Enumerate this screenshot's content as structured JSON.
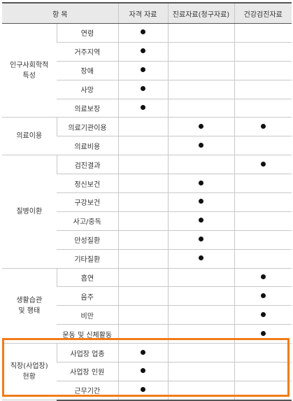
{
  "header": {
    "item": "항 목",
    "col1": "자격 자료",
    "col2": "진료자료(청구자료)",
    "col3": "건강검진자료"
  },
  "groups": [
    {
      "label": "인구사회학적\n특성",
      "rows": [
        {
          "name": "연령",
          "marks": [
            true,
            false,
            false
          ]
        },
        {
          "name": "거주지역",
          "marks": [
            true,
            false,
            false
          ]
        },
        {
          "name": "장애",
          "marks": [
            true,
            false,
            false
          ]
        },
        {
          "name": "사망",
          "marks": [
            true,
            false,
            false
          ]
        },
        {
          "name": "의료보장",
          "marks": [
            true,
            false,
            false
          ]
        }
      ]
    },
    {
      "label": "의료이용",
      "rows": [
        {
          "name": "의료기관이용",
          "marks": [
            false,
            true,
            true
          ]
        },
        {
          "name": "의료비용",
          "marks": [
            false,
            true,
            false
          ]
        }
      ]
    },
    {
      "label": "질병이환",
      "rows": [
        {
          "name": "검진결과",
          "marks": [
            false,
            false,
            true
          ]
        },
        {
          "name": "정신보건",
          "marks": [
            false,
            true,
            false
          ]
        },
        {
          "name": "구강보건",
          "marks": [
            false,
            true,
            false
          ]
        },
        {
          "name": "사고/중독",
          "marks": [
            false,
            true,
            false
          ]
        },
        {
          "name": "만성질환",
          "marks": [
            false,
            true,
            false
          ]
        },
        {
          "name": "기타질환",
          "marks": [
            false,
            true,
            false
          ]
        }
      ]
    },
    {
      "label": "생활습관\n및 행태",
      "rows": [
        {
          "name": "흡연",
          "marks": [
            false,
            false,
            true
          ]
        },
        {
          "name": "음주",
          "marks": [
            false,
            false,
            true
          ]
        },
        {
          "name": "비만",
          "marks": [
            false,
            false,
            true
          ]
        },
        {
          "name": "운동 및 신체활동",
          "marks": [
            false,
            false,
            true
          ]
        }
      ]
    },
    {
      "label": "직장(사업장)\n현황",
      "rows": [
        {
          "name": "사업장 업종",
          "marks": [
            true,
            false,
            false
          ]
        },
        {
          "name": "사업장 인원",
          "marks": [
            true,
            false,
            false
          ]
        },
        {
          "name": "근무기간",
          "marks": [
            true,
            false,
            false
          ]
        }
      ]
    }
  ],
  "highlight_color": "#f07c1a"
}
